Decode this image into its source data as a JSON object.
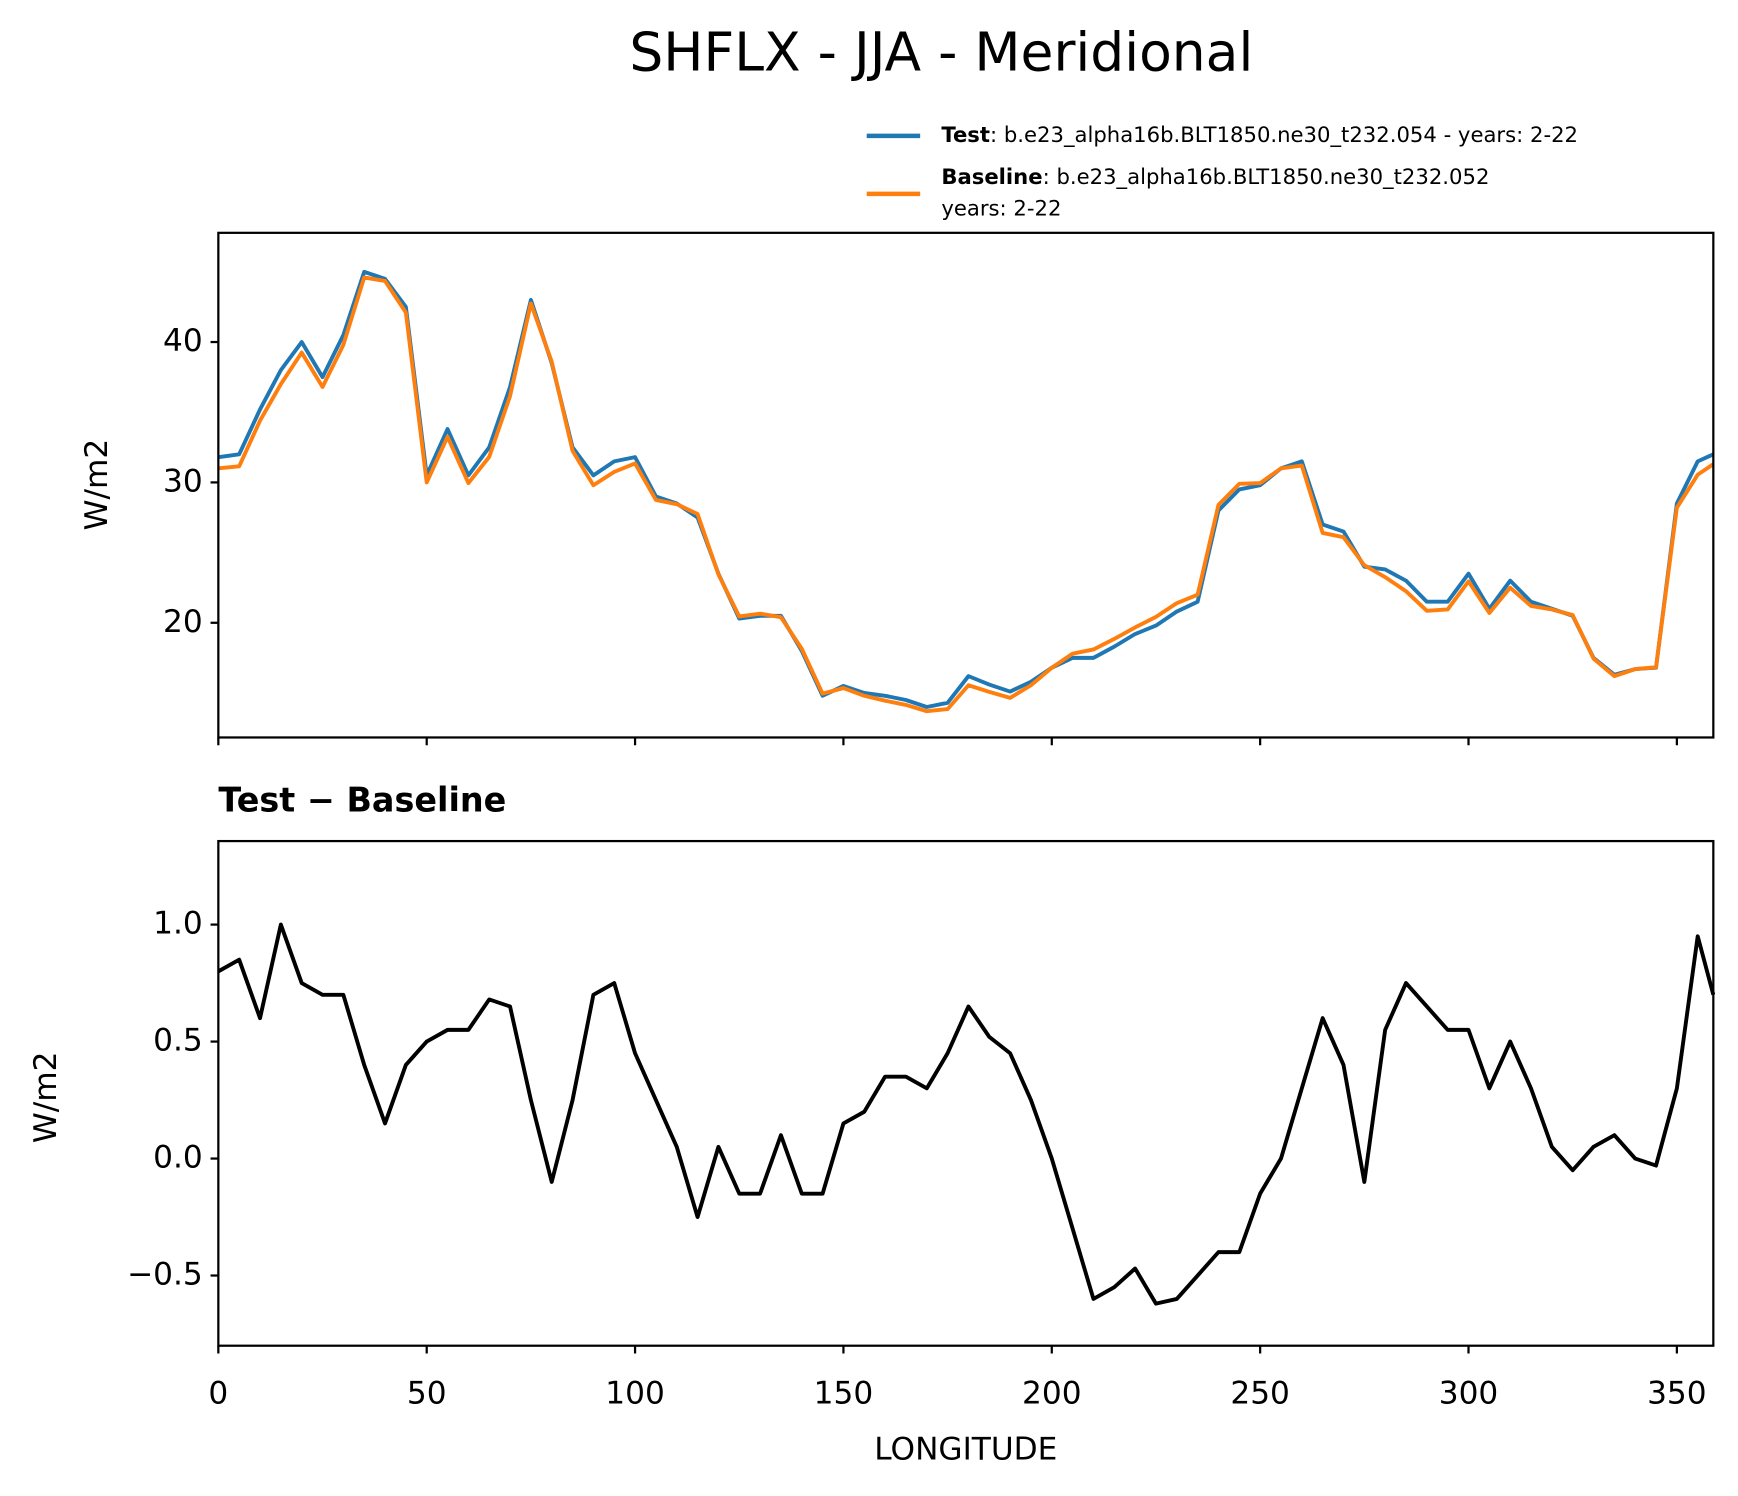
{
  "chart_data": [
    {
      "type": "line",
      "title": "SHFLX - JJA - Meridional",
      "ylabel": "W/m2",
      "x": [
        0,
        5,
        10,
        15,
        20,
        25,
        30,
        35,
        40,
        45,
        50,
        55,
        60,
        65,
        70,
        75,
        80,
        85,
        90,
        95,
        100,
        105,
        110,
        115,
        120,
        125,
        130,
        135,
        140,
        145,
        150,
        155,
        160,
        165,
        170,
        175,
        180,
        185,
        190,
        195,
        200,
        205,
        210,
        215,
        220,
        225,
        230,
        235,
        240,
        245,
        250,
        255,
        260,
        265,
        270,
        275,
        280,
        285,
        290,
        295,
        300,
        305,
        310,
        315,
        320,
        325,
        330,
        335,
        340,
        345,
        350,
        355,
        358.75
      ],
      "series": [
        {
          "name": "Test",
          "details": [
            ": b.e23_alpha16b.BLT1850.ne30_t232.054 - years: 2-22"
          ],
          "color": "#1f77b4",
          "values": [
            31.8,
            32.0,
            35.2,
            38,
            40,
            37.5,
            40.5,
            45,
            44.5,
            42.5,
            30.5,
            33.8,
            30.5,
            32.5,
            36.8,
            43,
            38.5,
            32.5,
            30.5,
            31.5,
            31.8,
            29,
            28.5,
            27.5,
            23.5,
            20.3,
            20.5,
            20.5,
            18,
            14.8,
            15.5,
            15,
            14.8,
            14.5,
            14,
            14.3,
            16.2,
            15.6,
            15.1,
            15.8,
            16.8,
            17.5,
            17.5,
            18.3,
            19.2,
            19.8,
            20.8,
            21.5,
            28,
            29.5,
            29.8,
            31,
            31.5,
            27,
            26.5,
            24,
            23.8,
            23,
            21.5,
            21.5,
            23.5,
            21,
            23,
            21.5,
            21,
            20.5,
            17.5,
            16.3,
            16.7,
            16.8,
            28.5,
            31.5,
            32
          ]
        },
        {
          "name": "Baseline",
          "details": [
            ": b.e23_alpha16b.BLT1850.ne30_t232.052",
            "years: 2-22"
          ],
          "color": "#ff7f0e",
          "values": [
            31.0,
            31.15,
            34.4,
            37.0,
            39.25,
            36.8,
            39.8,
            44.6,
            44.35,
            42.1,
            30.0,
            33.25,
            29.95,
            31.82,
            36.15,
            42.75,
            38.6,
            32.25,
            29.8,
            30.75,
            31.35,
            28.75,
            28.45,
            27.75,
            23.45,
            20.45,
            20.65,
            20.4,
            18.15,
            14.95,
            15.35,
            14.8,
            14.45,
            14.15,
            13.7,
            13.85,
            15.55,
            15.08,
            14.65,
            15.55,
            16.8,
            17.8,
            18.1,
            18.85,
            19.67,
            20.42,
            21.4,
            22.0,
            28.4,
            29.9,
            29.95,
            31.0,
            31.2,
            26.4,
            26.1,
            24.1,
            23.25,
            22.25,
            20.85,
            20.95,
            22.95,
            20.7,
            22.5,
            21.2,
            20.95,
            20.55,
            17.45,
            16.2,
            16.7,
            16.83,
            28.2,
            30.55,
            31.3
          ]
        }
      ],
      "xlim": [
        0,
        358.75
      ],
      "xticks": [
        0,
        50,
        100,
        150,
        200,
        250,
        300,
        350
      ],
      "show_xtick_labels": false,
      "ylim": [
        11.83,
        47.78
      ],
      "yticks": [
        20,
        30,
        40
      ]
    },
    {
      "type": "line",
      "subtitle": "Test − Baseline",
      "ylabel": "W/m2",
      "xlabel": "LONGITUDE",
      "x": [
        0,
        5,
        10,
        15,
        20,
        25,
        30,
        35,
        40,
        45,
        50,
        55,
        60,
        65,
        70,
        75,
        80,
        85,
        90,
        95,
        100,
        105,
        110,
        115,
        120,
        125,
        130,
        135,
        140,
        145,
        150,
        155,
        160,
        165,
        170,
        175,
        180,
        185,
        190,
        195,
        200,
        205,
        210,
        215,
        220,
        225,
        230,
        235,
        240,
        245,
        250,
        255,
        260,
        265,
        270,
        275,
        280,
        285,
        290,
        295,
        300,
        305,
        310,
        315,
        320,
        325,
        330,
        335,
        340,
        345,
        350,
        355,
        358.75
      ],
      "color": "#000000",
      "values": [
        0.8,
        0.85,
        0.6,
        1.0,
        0.75,
        0.7,
        0.7,
        0.4,
        0.15,
        0.4,
        0.5,
        0.55,
        0.55,
        0.68,
        0.65,
        0.25,
        -0.1,
        0.25,
        0.7,
        0.75,
        0.45,
        0.25,
        0.05,
        -0.25,
        0.05,
        -0.15,
        -0.15,
        0.1,
        -0.15,
        -0.15,
        0.15,
        0.2,
        0.35,
        0.35,
        0.3,
        0.45,
        0.65,
        0.52,
        0.45,
        0.25,
        0.0,
        -0.3,
        -0.6,
        -0.55,
        -0.47,
        -0.62,
        -0.6,
        -0.5,
        -0.4,
        -0.4,
        -0.15,
        0.0,
        0.3,
        0.6,
        0.4,
        -0.1,
        0.55,
        0.75,
        0.65,
        0.55,
        0.55,
        0.3,
        0.5,
        0.3,
        0.05,
        -0.05,
        0.05,
        0.1,
        0.0,
        -0.03,
        0.3,
        0.95,
        0.7
      ],
      "xlim": [
        0,
        358.75
      ],
      "xticks": [
        0,
        50,
        100,
        150,
        200,
        250,
        300,
        350
      ],
      "show_xtick_labels": true,
      "ylim": [
        -0.8,
        1.357
      ],
      "yticks": [
        {
          "value": -0.5,
          "label": "−0.5"
        },
        {
          "value": 0,
          "label": "0.0"
        },
        0.5,
        {
          "value": 1,
          "label": "1.0"
        }
      ]
    }
  ]
}
